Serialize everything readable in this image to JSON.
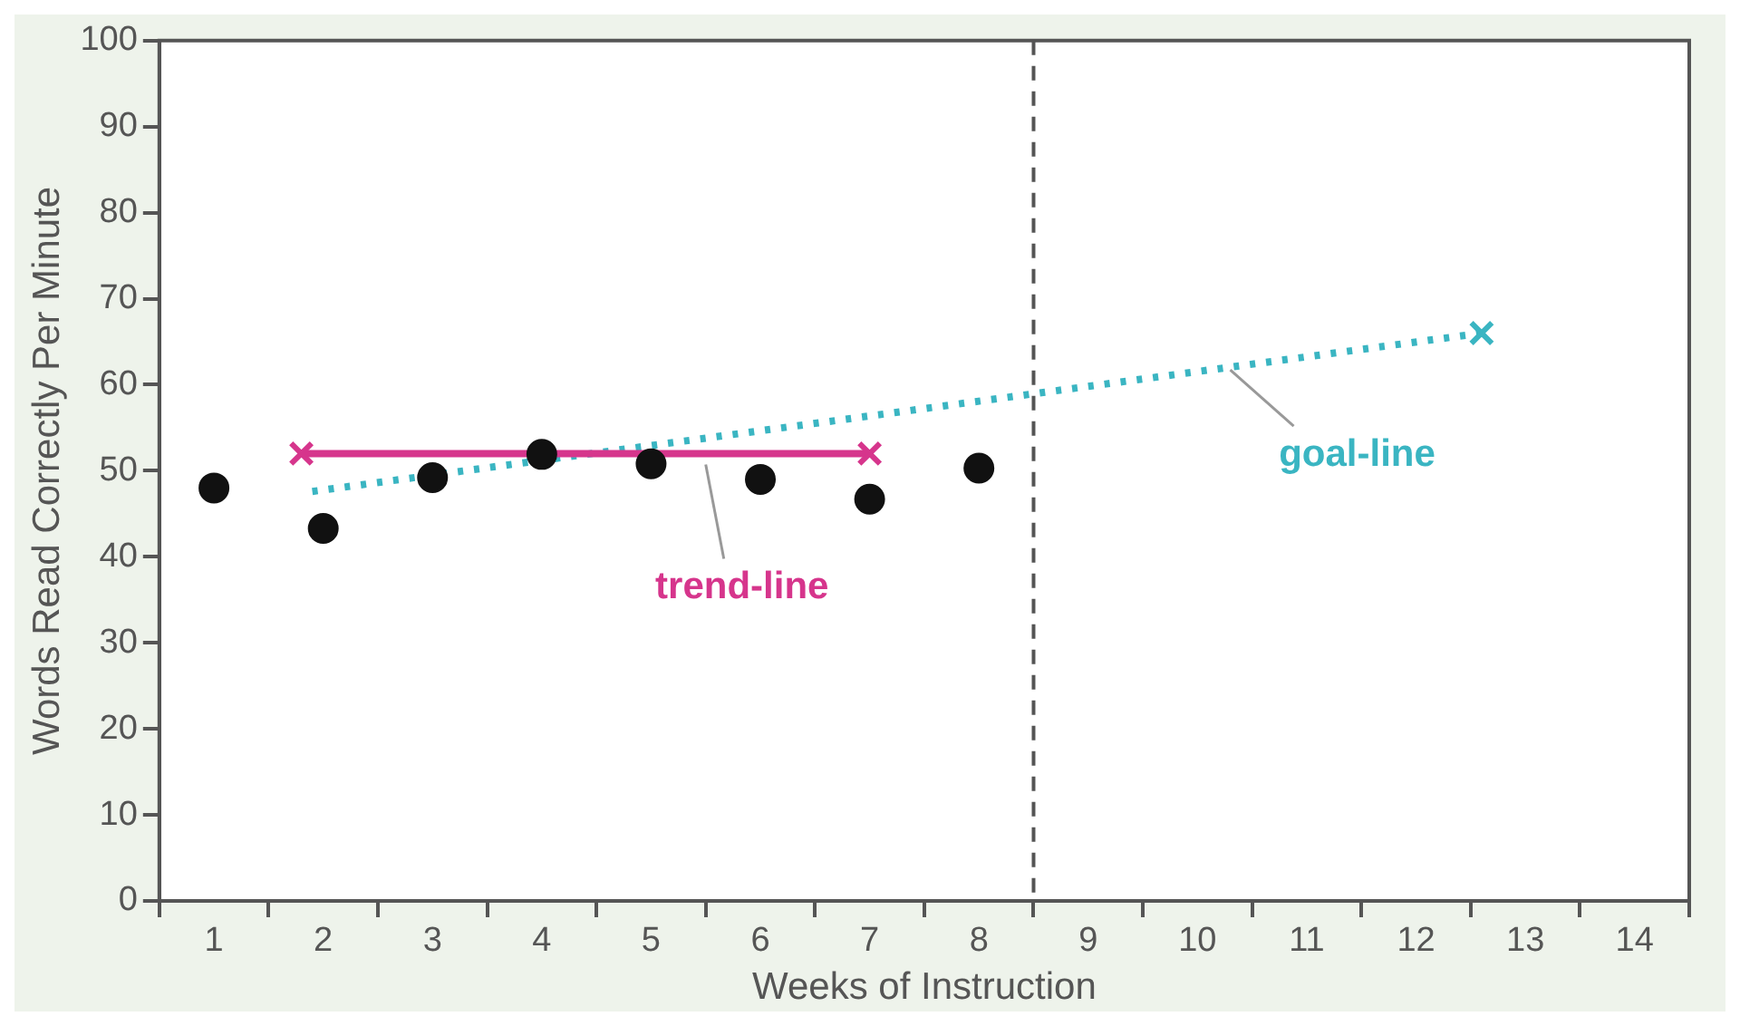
{
  "chart_data": {
    "type": "scatter",
    "xlabel": "Weeks of Instruction",
    "ylabel": "Words Read Correctly Per Minute",
    "xlim": [
      0.5,
      14.5
    ],
    "xticks": [
      {
        "value": 0.5,
        "label": null
      },
      1,
      {
        "value": 1.5,
        "label": null
      },
      2,
      {
        "value": 2.5,
        "label": null
      },
      3,
      {
        "value": 3.5,
        "label": null
      },
      4,
      {
        "value": 4.5,
        "label": null
      },
      5,
      {
        "value": 5.5,
        "label": null
      },
      6,
      {
        "value": 6.5,
        "label": null
      },
      7,
      {
        "value": 7.5,
        "label": null
      },
      8,
      {
        "value": 8.5,
        "label": null
      },
      9,
      {
        "value": 9.5,
        "label": null
      },
      10,
      {
        "value": 10.5,
        "label": null
      },
      11,
      {
        "value": 11.5,
        "label": null
      },
      12,
      {
        "value": 12.5,
        "label": null
      },
      13,
      {
        "value": 13.5,
        "label": null
      },
      14,
      {
        "value": 14.5,
        "label": null
      }
    ],
    "ylim": [
      0,
      100
    ],
    "yticks": [
      0,
      10,
      20,
      30,
      40,
      50,
      60,
      70,
      80,
      90,
      100
    ],
    "legend": false,
    "series": [
      {
        "color": "#111111",
        "marker": "circle",
        "x": [
          1,
          2,
          3,
          4,
          5,
          6,
          7,
          8
        ],
        "values": [
          48,
          43.3,
          49.2,
          51.9,
          50.8,
          49,
          46.7,
          50.3
        ]
      },
      {
        "type": "line",
        "color": "#d6358c",
        "marker": "cross",
        "line_style": "solid",
        "x": [
          1.8,
          7
        ],
        "values": [
          52,
          52
        ]
      },
      {
        "type": "line",
        "color": "#3ab5c2",
        "marker": "cross",
        "line_style": "dotted",
        "x": [
          1.9,
          12.6
        ],
        "values": [
          47.6,
          66
        ]
      }
    ],
    "ref_lines": [
      {
        "axis": "x",
        "value": 8.5,
        "color": "#555555",
        "line_style": "dashed"
      }
    ],
    "annotations": [
      {
        "text": "trend-line",
        "x": 5.5,
        "y": 52
      },
      {
        "text": "goal-line",
        "x": 10.3,
        "y": 63
      }
    ]
  }
}
